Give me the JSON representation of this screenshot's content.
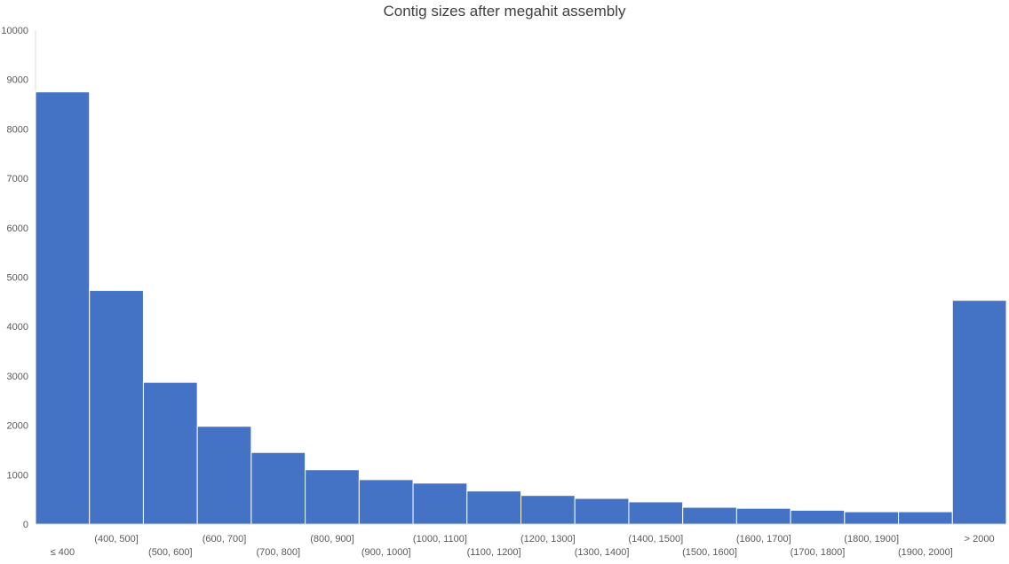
{
  "chart_data": {
    "type": "bar",
    "title": "Contig sizes after megahit assembly",
    "xlabel": "",
    "ylabel": "",
    "ylim": [
      0,
      10000
    ],
    "yticks": [
      "0",
      "1000",
      "2000",
      "3000",
      "4000",
      "5000",
      "6000",
      "7000",
      "8000",
      "9000",
      "10000"
    ],
    "categories": [
      "≤ 400",
      "(400, 500]",
      "(500, 600]",
      "(600, 700]",
      "(700, 800]",
      "(800, 900]",
      "(900, 1000]",
      "(1000, 1100]",
      "(1100, 1200]",
      "(1200, 1300]",
      "(1300, 1400]",
      "(1400, 1500]",
      "(1500, 1600]",
      "(1600, 1700]",
      "(1700, 1800]",
      "(1800, 1900]",
      "(1900, 2000]",
      "> 2000"
    ],
    "values": [
      8750,
      4730,
      2870,
      1980,
      1450,
      1100,
      900,
      830,
      670,
      580,
      520,
      450,
      340,
      320,
      280,
      250,
      250,
      4530
    ],
    "bar_color": "#4472C4",
    "grid": false,
    "legend": "none"
  }
}
